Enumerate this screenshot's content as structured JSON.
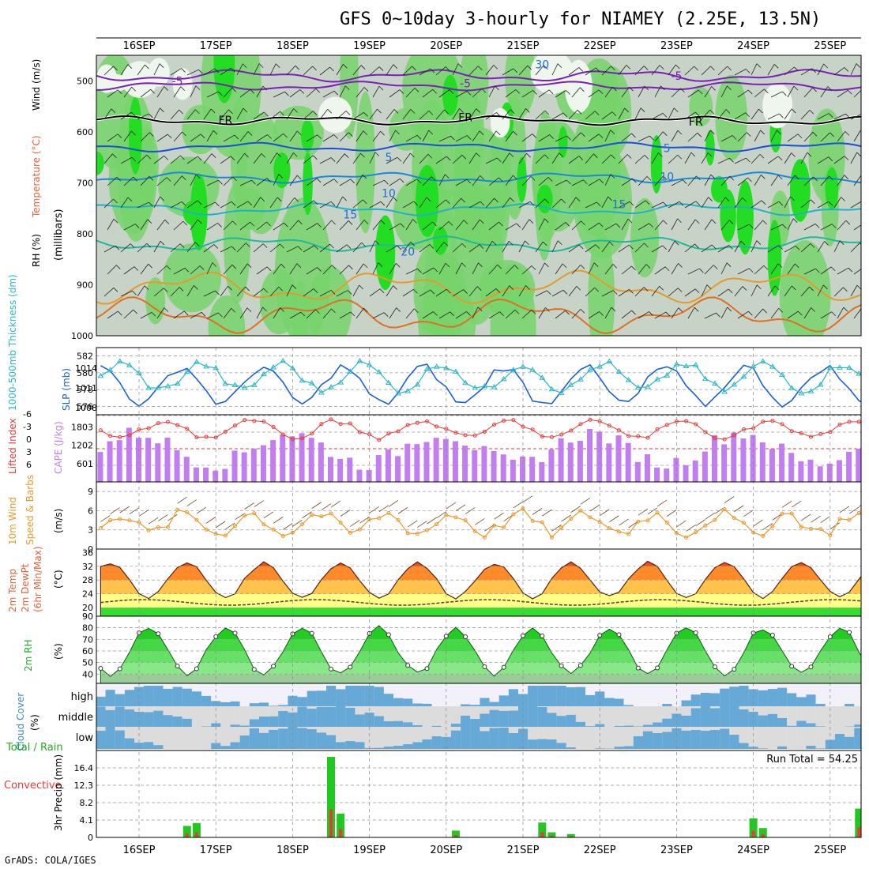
{
  "title": "GFS 0~10day 3-hourly for NIAMEY (2.25E, 13.5N)",
  "footer": "GrADS: COLA/IGES",
  "run_total_text": "Run Total = 54.25",
  "date_labels": [
    "16SEP",
    "17SEP",
    "18SEP",
    "19SEP",
    "20SEP",
    "21SEP",
    "22SEP",
    "23SEP",
    "24SEP",
    "25SEP"
  ],
  "colors": {
    "rh_green": "#22dd22",
    "rh_light": "#77d46b",
    "grey": "#c7d3c7",
    "cape": "#c27ef0",
    "cloud": "#66a8d6",
    "precip_total": "#22c722",
    "precip_conv": "#e83a3a",
    "temp_line": "#1a5fd6"
  },
  "chart_data": [
    {
      "type": "heatmap",
      "panel": "upper-air",
      "ylabel_parts": [
        "RH (%)",
        "Temperature (°C)",
        "Wind (m/s)"
      ],
      "ylabel_right": "(millibars)",
      "yticks": [
        500,
        600,
        700,
        800,
        900,
        1000
      ],
      "ylim": [
        450,
        1000
      ],
      "contour_labels": [
        {
          "text": "-5",
          "at": "16SEP 12Z",
          "p": 500
        },
        {
          "text": "-5",
          "at": "20SEP 06Z",
          "p": 505
        },
        {
          "text": "-5",
          "at": "23SEP 00Z",
          "p": 490
        },
        {
          "text": "FR",
          "at": "17SEP 03Z",
          "p": 577
        },
        {
          "text": "FR",
          "at": "20SEP 06Z",
          "p": 572
        },
        {
          "text": "FR",
          "at": "23SEP 06Z",
          "p": 580
        },
        {
          "text": "5",
          "at": "19SEP 06Z",
          "p": 650
        },
        {
          "text": "5",
          "at": "22SEP 21Z",
          "p": 632
        },
        {
          "text": "10",
          "at": "19SEP 06Z",
          "p": 720
        },
        {
          "text": "10",
          "at": "22SEP 21Z",
          "p": 688
        },
        {
          "text": "15",
          "at": "18SEP 18Z",
          "p": 762
        },
        {
          "text": "15",
          "at": "22SEP 06Z",
          "p": 742
        },
        {
          "text": "20",
          "at": "19SEP 12Z",
          "p": 835
        },
        {
          "text": "30",
          "at": "21SEP 06Z",
          "p": 468
        }
      ]
    },
    {
      "type": "line",
      "panel": "thickness-slp",
      "ylabel_left": "1000-500mb Thickness (dm)",
      "ylabel_right": "SLP (mb)",
      "yticks_left": [
        576,
        578,
        580,
        582
      ],
      "yticks_right": [
        1008,
        1011,
        1014
      ]
    },
    {
      "type": "bar",
      "panel": "cape-lifted-index",
      "ylabel_left": "Lifted Index",
      "ylabel_right": "CAPE (J/kg)",
      "yticks_left": [
        "-6",
        "-3",
        "0",
        "3",
        "6"
      ],
      "yticks_right": [
        601,
        1202,
        1803
      ]
    },
    {
      "type": "line",
      "panel": "wind",
      "ylabel_left": "10m Wind",
      "ylabel_mid": "Speed & Barbs",
      "unit": "(m/s)",
      "yticks": [
        0,
        3,
        6,
        9
      ]
    },
    {
      "type": "area",
      "panel": "temperature",
      "ylabel_lines": [
        "2m Temp",
        "2m DewPt",
        "(6hr Min/Max)"
      ],
      "unit": "(°C)",
      "yticks": [
        20,
        24,
        28,
        32,
        36
      ]
    },
    {
      "type": "area",
      "panel": "rh",
      "ylabel": "2m RH",
      "unit": "(%)",
      "yticks": [
        40,
        50,
        60,
        70,
        80,
        90
      ]
    },
    {
      "type": "bar",
      "panel": "cloud",
      "ylabel": "Cloud Cover",
      "unit": "(%)",
      "levels": [
        "high",
        "middle",
        "low"
      ]
    },
    {
      "type": "bar",
      "panel": "precip",
      "ylabel_left_green": "Total / Rain",
      "ylabel_left_red": "Convective",
      "ylabel": "3hr Precip (mm)",
      "yticks": [
        0,
        4.1,
        8.2,
        12.3,
        16.4
      ]
    }
  ]
}
